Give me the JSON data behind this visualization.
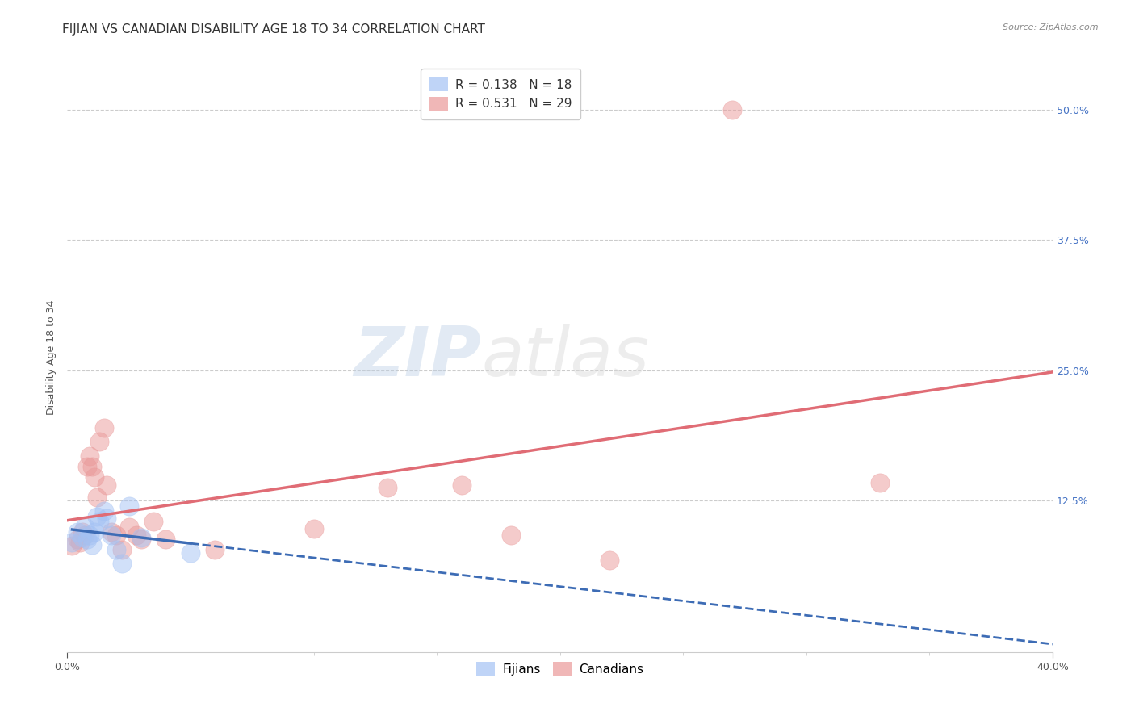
{
  "title": "FIJIAN VS CANADIAN DISABILITY AGE 18 TO 34 CORRELATION CHART",
  "source": "Source: ZipAtlas.com",
  "ylabel": "Disability Age 18 to 34",
  "ytick_vals": [
    0.125,
    0.25,
    0.375,
    0.5
  ],
  "ytick_labels": [
    "12.5%",
    "25.0%",
    "37.5%",
    "50.0%"
  ],
  "xlim": [
    0.0,
    0.4
  ],
  "ylim": [
    -0.02,
    0.545
  ],
  "fijian_color": "#a4c2f4",
  "canadian_color": "#ea9999",
  "fijian_line_color": "#3d6cb5",
  "canadian_line_color": "#e06c75",
  "legend_R_fijian": "R = 0.138",
  "legend_N_fijian": "N = 18",
  "legend_R_canadian": "R = 0.531",
  "legend_N_canadian": "N = 29",
  "fijian_x": [
    0.002,
    0.004,
    0.006,
    0.007,
    0.008,
    0.009,
    0.01,
    0.011,
    0.012,
    0.013,
    0.015,
    0.016,
    0.018,
    0.02,
    0.022,
    0.025,
    0.03,
    0.05
  ],
  "fijian_y": [
    0.085,
    0.095,
    0.09,
    0.1,
    0.088,
    0.092,
    0.083,
    0.095,
    0.11,
    0.105,
    0.115,
    0.108,
    0.092,
    0.078,
    0.065,
    0.12,
    0.09,
    0.075
  ],
  "canadian_x": [
    0.002,
    0.004,
    0.005,
    0.006,
    0.007,
    0.008,
    0.009,
    0.01,
    0.011,
    0.012,
    0.013,
    0.015,
    0.016,
    0.018,
    0.02,
    0.022,
    0.025,
    0.028,
    0.03,
    0.035,
    0.04,
    0.06,
    0.1,
    0.13,
    0.16,
    0.18,
    0.22,
    0.33,
    0.27
  ],
  "canadian_y": [
    0.082,
    0.088,
    0.085,
    0.095,
    0.092,
    0.158,
    0.168,
    0.158,
    0.148,
    0.128,
    0.182,
    0.195,
    0.14,
    0.095,
    0.092,
    0.078,
    0.1,
    0.092,
    0.088,
    0.105,
    0.088,
    0.078,
    0.098,
    0.138,
    0.14,
    0.092,
    0.068,
    0.142,
    0.5
  ],
  "watermark_zip": "ZIP",
  "watermark_atlas": "atlas",
  "background_color": "#ffffff",
  "grid_color": "#cccccc",
  "title_fontsize": 11,
  "tick_fontsize": 9,
  "legend_fontsize": 11,
  "ylabel_fontsize": 9,
  "source_fontsize": 8
}
